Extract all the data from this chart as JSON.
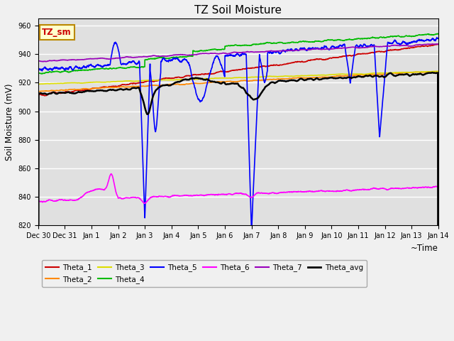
{
  "title": "TZ Soil Moisture",
  "xlabel": "~Time",
  "ylabel": "Soil Moisture (mV)",
  "ylim": [
    820,
    965
  ],
  "yticks": [
    820,
    840,
    860,
    880,
    900,
    920,
    940,
    960
  ],
  "fig_bg": "#f0f0f0",
  "ax_bg": "#e0e0e0",
  "series_colors": {
    "Theta_1": "#cc0000",
    "Theta_2": "#ff8800",
    "Theta_3": "#dddd00",
    "Theta_4": "#00bb00",
    "Theta_5": "#0000ff",
    "Theta_6": "#ff00ff",
    "Theta_7": "#9900bb",
    "Theta_avg": "#000000"
  },
  "legend_box_text": "TZ_sm",
  "legend_box_bg": "#ffffcc",
  "legend_box_border": "#bb8800"
}
